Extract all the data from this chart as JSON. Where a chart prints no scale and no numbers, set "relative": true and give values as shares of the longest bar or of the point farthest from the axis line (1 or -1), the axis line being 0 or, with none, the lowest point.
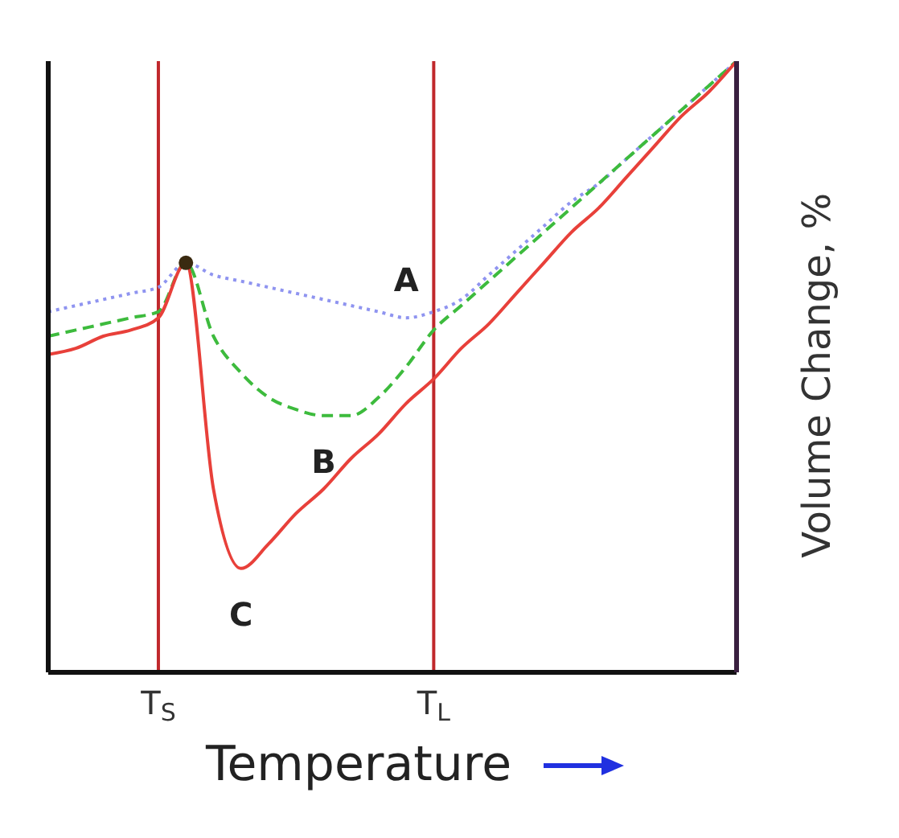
{
  "chart_data": {
    "type": "line",
    "relative": true,
    "xlabel": "Temperature",
    "ylabel": "Volume Change, %",
    "categories": [
      null,
      null,
      null,
      null,
      "T$_{S}$",
      null,
      null,
      null,
      null,
      null,
      null,
      null,
      null,
      null,
      "T$_{L}$",
      null,
      null,
      null,
      null,
      null,
      null,
      null,
      null,
      null,
      null,
      null
    ],
    "series": [
      {
        "color": "#8f94f0",
        "line_style": "dotted",
        "values": [
          0.59,
          0.6,
          0.61,
          0.62,
          0.63,
          0.67,
          0.65,
          0.64,
          0.63,
          0.62,
          0.61,
          0.6,
          0.59,
          0.58,
          0.59,
          0.61,
          0.65,
          0.69,
          0.73,
          0.77,
          0.8,
          0.84,
          0.88,
          0.92,
          0.96,
          1
        ]
      },
      {
        "color": "#3dbb3d",
        "line_style": "dashed",
        "values": [
          0.55,
          0.56,
          0.57,
          0.58,
          0.59,
          0.67,
          0.55,
          0.49,
          0.45,
          0.43,
          0.42,
          0.42,
          0.45,
          0.5,
          0.56,
          0.6,
          0.64,
          0.68,
          0.72,
          0.76,
          0.8,
          0.84,
          0.88,
          0.92,
          0.96,
          1
        ]
      },
      {
        "color": "#e8403a",
        "line_style": "solid",
        "values": [
          0.52,
          0.53,
          0.55,
          0.56,
          0.58,
          0.67,
          0.3,
          0.17,
          0.21,
          0.26,
          0.3,
          0.35,
          0.39,
          0.44,
          0.48,
          0.53,
          0.57,
          0.62,
          0.67,
          0.72,
          0.76,
          0.81,
          0.86,
          0.91,
          0.95,
          1
        ]
      },
      {
        "type": "scatter",
        "color": "#3a2a10",
        "marker": "circle",
        "values": [
          null,
          null,
          null,
          null,
          null,
          0.67,
          null,
          null,
          null,
          null,
          null,
          null,
          null,
          null,
          null,
          null,
          null,
          null,
          null,
          null,
          null,
          null,
          null,
          null,
          null,
          null
        ]
      }
    ],
    "ref_lines": [
      {
        "axis": "x",
        "value": "T$_{S}$",
        "color": "#c0282c"
      },
      {
        "axis": "x",
        "value": "T$_{L}$",
        "color": "#c0282c"
      }
    ],
    "annotations": [
      "A",
      "B",
      "C"
    ],
    "grid": false
  }
}
